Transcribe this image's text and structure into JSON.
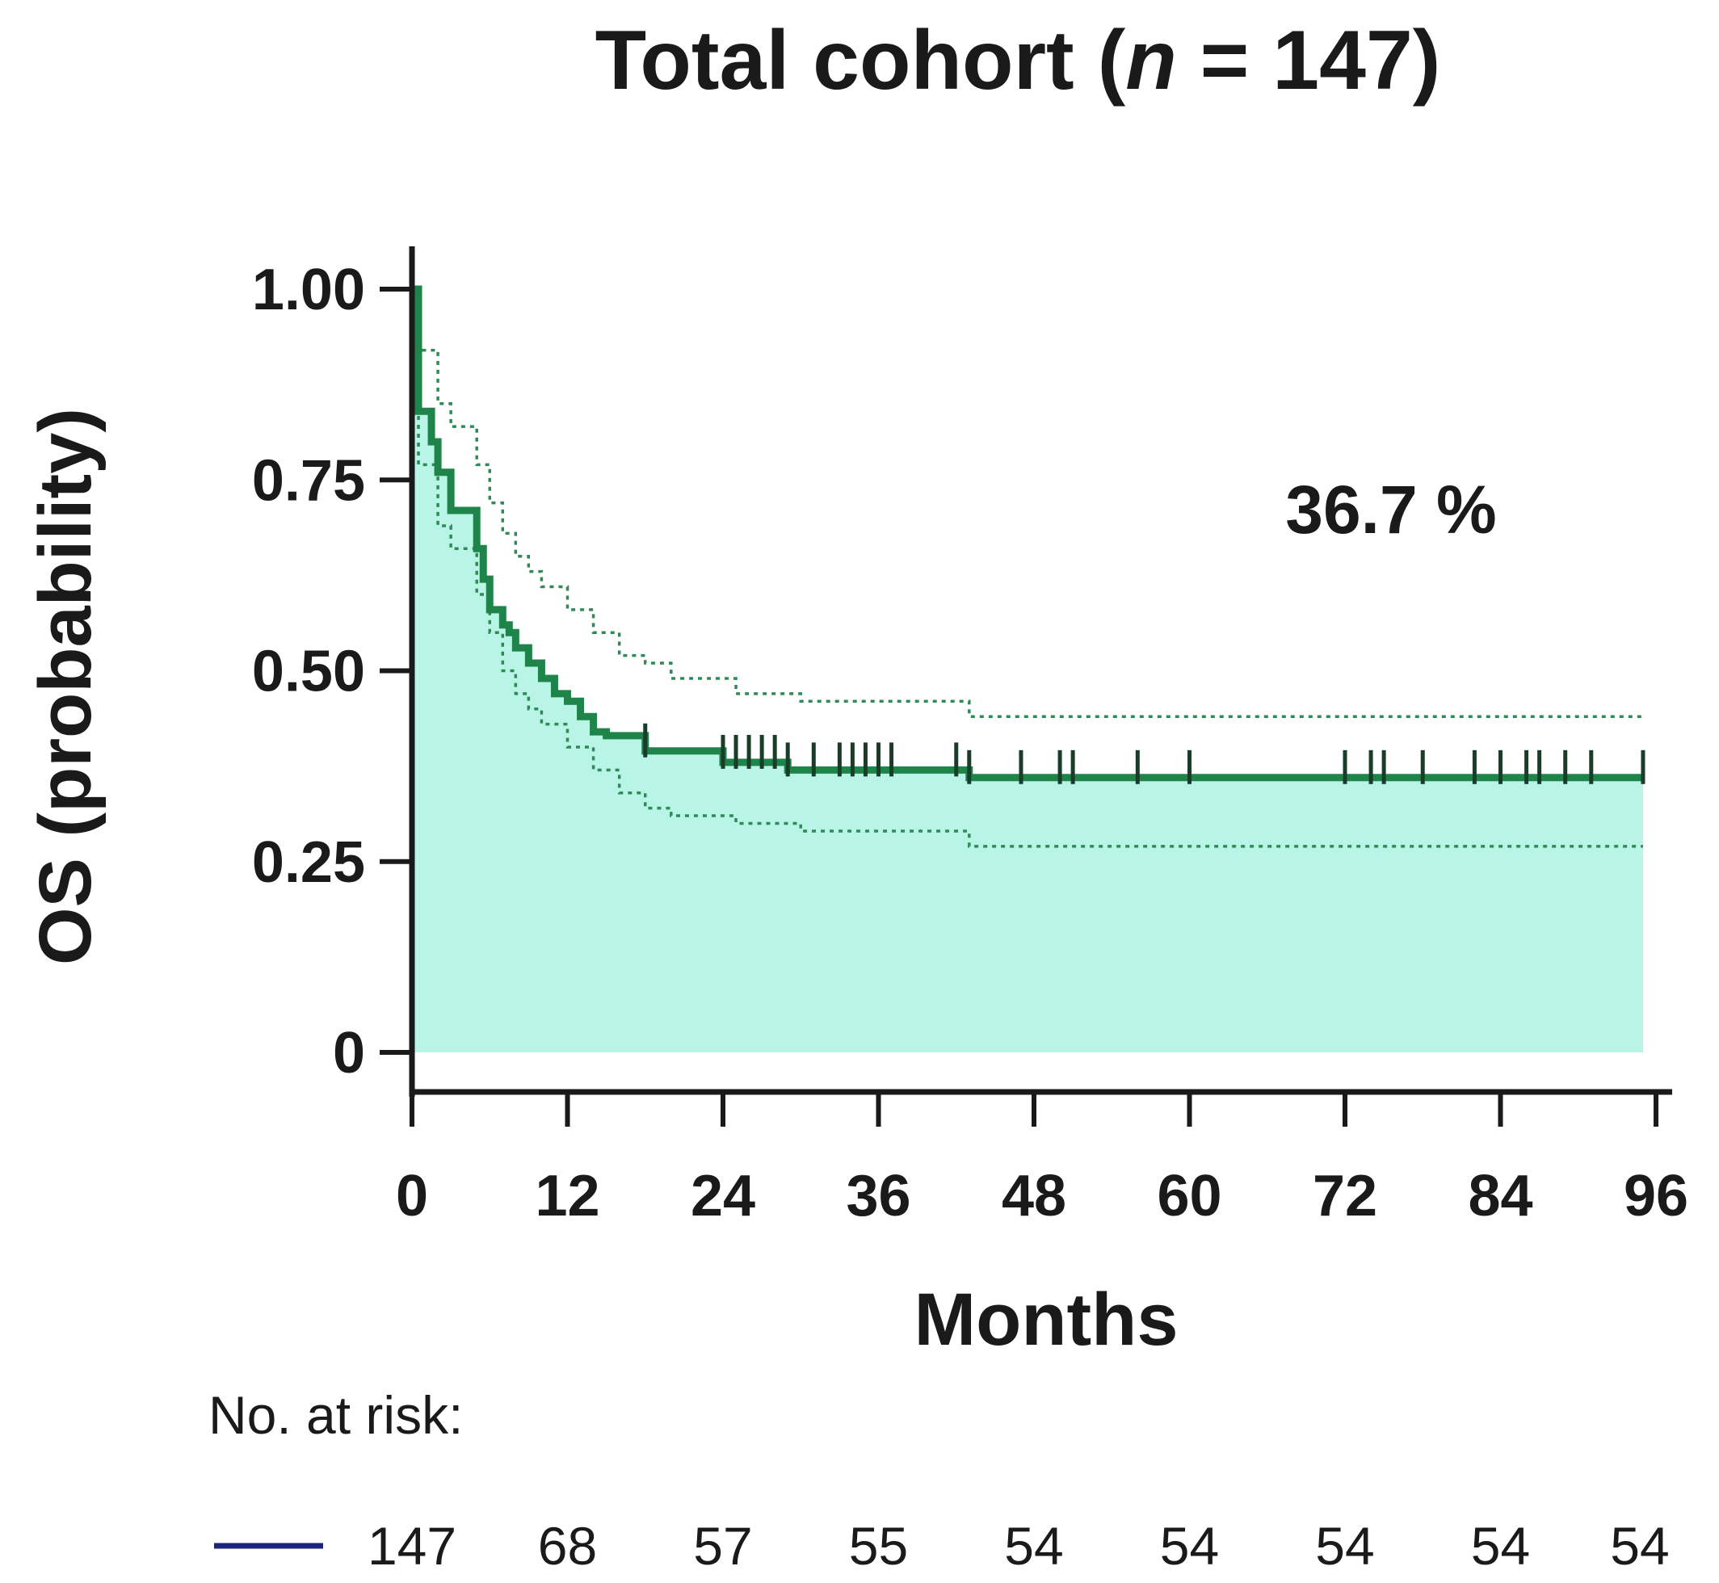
{
  "chart_data": {
    "type": "line",
    "title_prefix": "Total cohort (",
    "title_var": "n",
    "title_suffix": " = 147)",
    "xlabel": "Months",
    "ylabel": "OS (probability)",
    "x_ticks": [
      0,
      12,
      24,
      36,
      48,
      60,
      72,
      84,
      96
    ],
    "x_tick_labels": [
      "0",
      "12",
      "24",
      "36",
      "48",
      "60",
      "72",
      "84",
      "96"
    ],
    "y_ticks": [
      0,
      0.25,
      0.5,
      0.75,
      1.0
    ],
    "y_tick_labels": [
      "0",
      "0.25",
      "0.50",
      "0.75",
      "1.00"
    ],
    "xlim": [
      0,
      96
    ],
    "ylim": [
      0,
      1.0
    ],
    "annotation": "36.7 %",
    "colors": {
      "line": "#1e8449",
      "fill": "#b8f5e6",
      "ci": "#2e8b57",
      "risk_legend": "#1a237e",
      "text": "#1a1a1a"
    },
    "series": [
      {
        "type": "step",
        "x": [
          0,
          0.5,
          1,
          1.5,
          2,
          3,
          5,
          5.5,
          6,
          7,
          7.5,
          8,
          9,
          10,
          11,
          12,
          13,
          14,
          15,
          18,
          24,
          29,
          43,
          95
        ],
        "y": [
          1.0,
          0.84,
          0.84,
          0.8,
          0.76,
          0.71,
          0.66,
          0.62,
          0.58,
          0.56,
          0.55,
          0.53,
          0.51,
          0.49,
          0.47,
          0.46,
          0.44,
          0.42,
          0.415,
          0.395,
          0.38,
          0.37,
          0.36,
          0.36
        ],
        "censor_x": [
          18,
          24,
          25,
          26,
          27,
          28,
          29,
          31,
          33,
          34,
          35,
          36,
          37,
          42,
          43,
          47,
          50,
          51,
          56,
          60,
          72,
          74,
          75,
          78,
          82,
          84,
          86,
          87,
          89,
          91,
          95
        ]
      },
      {
        "type": "ci-upper",
        "x": [
          0,
          0.5,
          1,
          2,
          3,
          5,
          6,
          7,
          8,
          9,
          10,
          12,
          14,
          16,
          18,
          20,
          25,
          30,
          35,
          43,
          95
        ],
        "y": [
          1.0,
          0.92,
          0.92,
          0.85,
          0.82,
          0.77,
          0.72,
          0.68,
          0.65,
          0.63,
          0.61,
          0.58,
          0.55,
          0.52,
          0.51,
          0.49,
          0.47,
          0.46,
          0.46,
          0.44,
          0.44
        ]
      },
      {
        "type": "ci-lower",
        "x": [
          0,
          0.5,
          1,
          2,
          3,
          5,
          6,
          7,
          8,
          9,
          10,
          12,
          14,
          16,
          18,
          20,
          25,
          30,
          35,
          43,
          95
        ],
        "y": [
          1.0,
          0.77,
          0.77,
          0.69,
          0.66,
          0.6,
          0.55,
          0.5,
          0.47,
          0.45,
          0.43,
          0.4,
          0.37,
          0.34,
          0.32,
          0.31,
          0.3,
          0.29,
          0.29,
          0.27,
          0.27
        ]
      }
    ],
    "risk_table": {
      "label": "No. at risk:",
      "counts": [
        "147",
        "68",
        "57",
        "55",
        "54",
        "54",
        "54",
        "54",
        "54"
      ]
    }
  }
}
